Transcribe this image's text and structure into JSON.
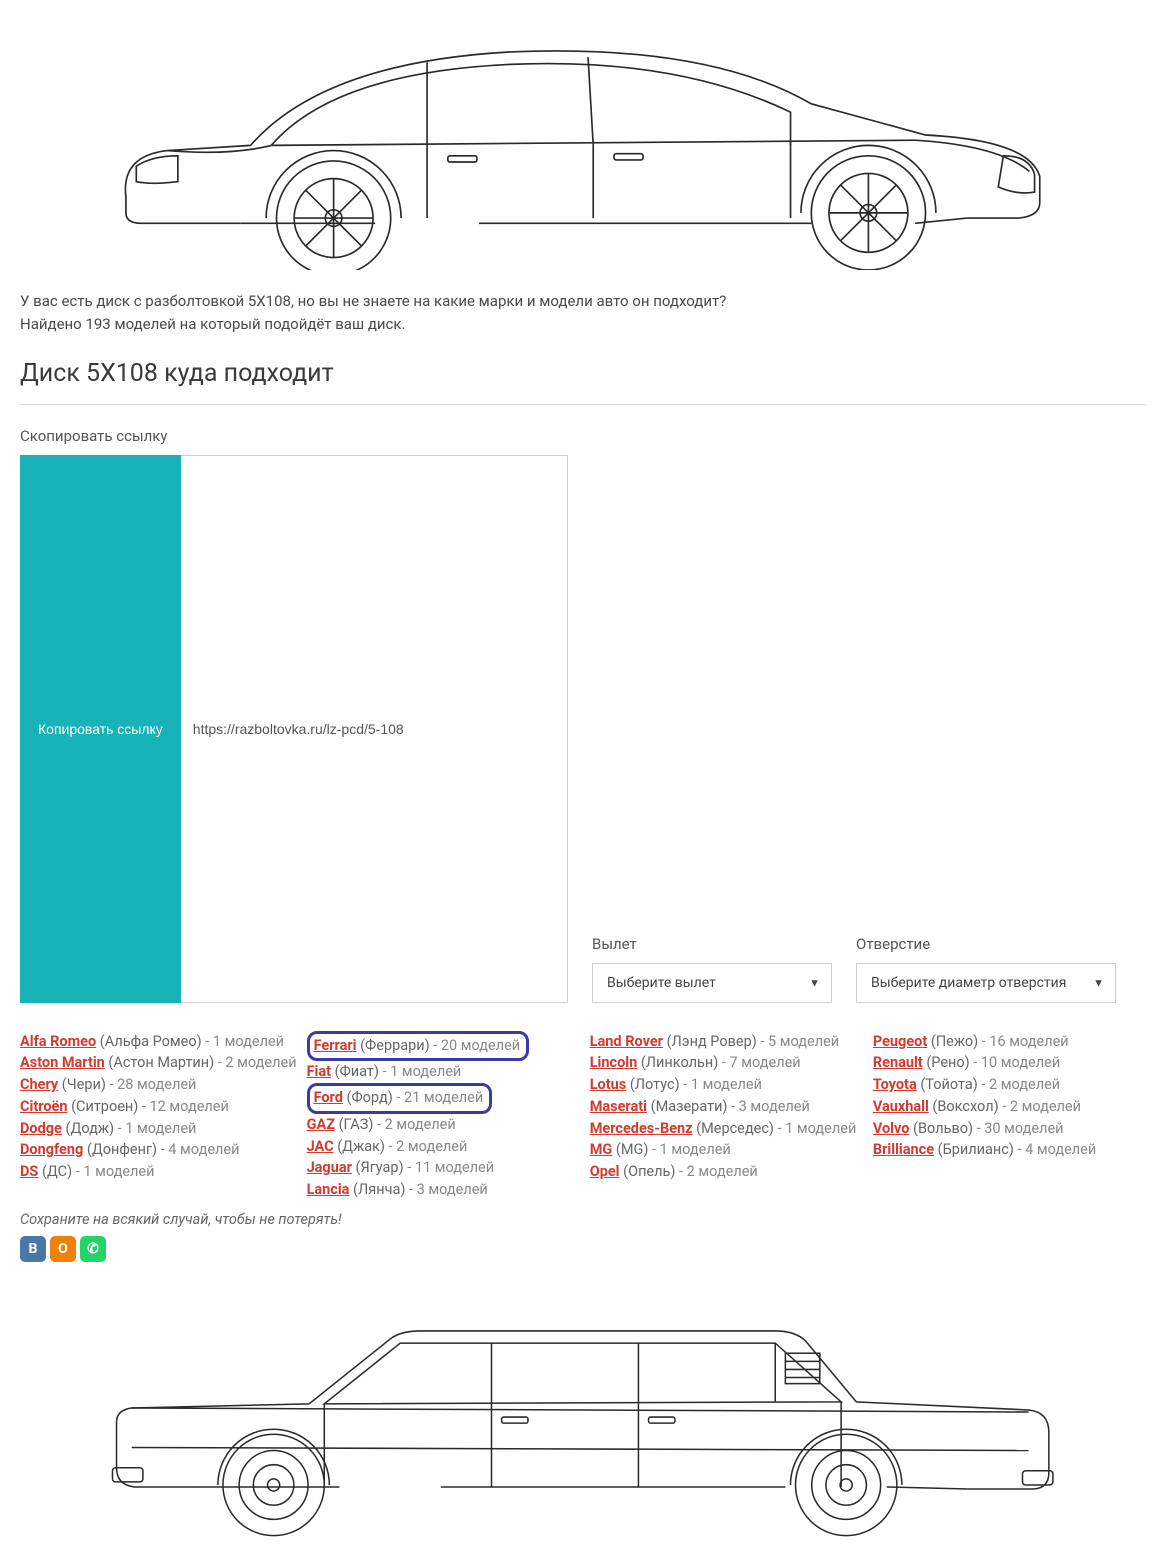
{
  "intro": {
    "line1": "У вас есть диск с разболтовкой 5X108, но вы не знаете на какие марки и модели авто он подходит?",
    "line2": "Найдено 193 моделей на который подойдёт ваш диск."
  },
  "heading": "Диск 5X108 куда подходит",
  "controls": {
    "copy_label": "Скопировать ссылку",
    "copy_button": "Копировать ссылку",
    "url_value": "https://razboltovka.ru/lz-pcd/5-108",
    "offset_label": "Вылет",
    "offset_placeholder": "Выберите вылет",
    "bore_label": "Отверстие",
    "bore_placeholder": "Выберите диаметр отверстия"
  },
  "colors": {
    "brand_link": "#d43a2f",
    "highlight_border": "#3a3aa8",
    "copy_btn_bg": "#17b3b8",
    "text_muted": "#888888"
  },
  "brands": {
    "col1": [
      {
        "name": "Alfa Romeo",
        "rus": "(Альфа Ромео)",
        "count": "- 1 моделей",
        "hl": false
      },
      {
        "name": "Aston Martin",
        "rus": "(Астон Мартин)",
        "count": "- 2 моделей",
        "hl": false
      },
      {
        "name": "Chery",
        "rus": "(Чери)",
        "count": "- 28 моделей",
        "hl": false
      },
      {
        "name": "Citroën",
        "rus": "(Ситроен)",
        "count": "- 12 моделей",
        "hl": false
      },
      {
        "name": "Dodge",
        "rus": "(Додж)",
        "count": "- 1 моделей",
        "hl": false
      },
      {
        "name": "Dongfeng",
        "rus": "(Донфенг)",
        "count": "- 4 моделей",
        "hl": false
      },
      {
        "name": "DS",
        "rus": "(ДС)",
        "count": "- 1 моделей",
        "hl": false
      }
    ],
    "col2": [
      {
        "name": "Ferrari",
        "rus": "(Феррари)",
        "count": "- 20 моделей",
        "hl": true
      },
      {
        "name": "Fiat",
        "rus": "(Фиат)",
        "count": "- 1 моделей",
        "hl": false
      },
      {
        "name": "Ford",
        "rus": "(Форд)",
        "count": "- 21 моделей",
        "hl": true
      },
      {
        "name": "GAZ",
        "rus": "(ГАЗ)",
        "count": "- 2 моделей",
        "hl": false
      },
      {
        "name": "JAC",
        "rus": "(Джак)",
        "count": "- 2 моделей",
        "hl": false
      },
      {
        "name": "Jaguar",
        "rus": "(Ягуар)",
        "count": "- 11 моделей",
        "hl": false
      },
      {
        "name": "Lancia",
        "rus": "(Лянча)",
        "count": "- 3 моделей",
        "hl": false
      }
    ],
    "col3": [
      {
        "name": "Land Rover",
        "rus": "(Лэнд Ровер)",
        "count": "- 5 моделей",
        "hl": false
      },
      {
        "name": "Lincoln",
        "rus": "(Линкольн)",
        "count": "- 7 моделей",
        "hl": false
      },
      {
        "name": "Lotus",
        "rus": "(Лотус)",
        "count": "- 1 моделей",
        "hl": false
      },
      {
        "name": "Maserati",
        "rus": "(Мазерати)",
        "count": "- 3 моделей",
        "hl": false
      },
      {
        "name": "Mercedes-Benz",
        "rus": "(Мерседес)",
        "count": "- 1 моделей",
        "hl": false
      },
      {
        "name": "MG",
        "rus": "(MG)",
        "count": "- 1 моделей",
        "hl": false
      },
      {
        "name": "Opel",
        "rus": "(Опель)",
        "count": "- 2 моделей",
        "hl": false
      }
    ],
    "col4": [
      {
        "name": "Peugeot",
        "rus": "(Пежо)",
        "count": "- 16 моделей",
        "hl": false
      },
      {
        "name": "Renault",
        "rus": "(Рено)",
        "count": "- 10 моделей",
        "hl": false
      },
      {
        "name": "Toyota",
        "rus": "(Тойота)",
        "count": "- 2 моделей",
        "hl": false
      },
      {
        "name": "Vauxhall",
        "rus": "(Воксхол)",
        "count": "- 2 моделей",
        "hl": false
      },
      {
        "name": "Volvo",
        "rus": "(Вольво)",
        "count": "- 30 моделей",
        "hl": false
      },
      {
        "name": "Brilliance",
        "rus": "(Брилианс)",
        "count": "- 4 моделей",
        "hl": false
      }
    ]
  },
  "save_note": "Сохраните на всякий случай, чтобы не потерять!",
  "share": {
    "vk": "B",
    "ok": "O",
    "wa": "✆"
  },
  "car_style": {
    "stroke": "#2a2a2a",
    "stroke_width": 1.4,
    "fill": "none"
  }
}
